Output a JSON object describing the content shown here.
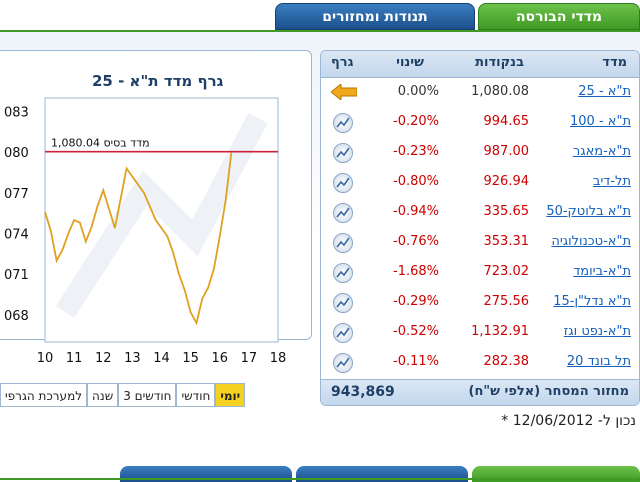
{
  "tabs": [
    {
      "label": "מדדי הבורסה",
      "active": true
    },
    {
      "label": "תנודות ומחזורים",
      "active": false
    }
  ],
  "table": {
    "headers": {
      "index": "מדד",
      "points": "בנקודות",
      "change": "שינוי",
      "graph": "גרף"
    },
    "rows": [
      {
        "name": "ת\"א - 25",
        "points": "1,080.08",
        "change": "0.00%",
        "selected": true
      },
      {
        "name": "ת\"א - 100",
        "points": "994.65",
        "change": "-0.20%"
      },
      {
        "name": "ת\"א-מאגר",
        "points": "987.00",
        "change": "-0.23%"
      },
      {
        "name": "תל-דיב",
        "points": "926.94",
        "change": "-0.80%"
      },
      {
        "name": "ת\"א בלוטק-50",
        "points": "335.65",
        "change": "-0.94%"
      },
      {
        "name": "ת\"א-טכנולוגיה",
        "points": "353.31",
        "change": "-0.76%"
      },
      {
        "name": "ת\"א-ביומד",
        "points": "723.02",
        "change": "-1.68%"
      },
      {
        "name": "ת\"א נדל\"ן-15",
        "points": "275.56",
        "change": "-0.29%"
      },
      {
        "name": "ת\"א-נפט וגז",
        "points": "1,132.91",
        "change": "-0.52%"
      },
      {
        "name": "תל בונד 20",
        "points": "282.38",
        "change": "-0.11%"
      }
    ],
    "footer": {
      "label": "מחזור המסחר (אלפי ש\"ח)",
      "value": "943,869"
    }
  },
  "chart": {
    "title": "גרף מדד ת\"א - 25",
    "base_label": "מדד בסיס 1,080.04",
    "periods": [
      "יומי",
      "חודשי",
      "3 חודשים",
      "שנה",
      "למערכת הגרפי"
    ],
    "active_period": "יומי"
  },
  "chart_data": {
    "type": "line",
    "title": "גרף מדד ת\"א - 25",
    "x_ticks": [
      "10",
      "11",
      "12",
      "13",
      "14",
      "15",
      "16",
      "17",
      "18"
    ],
    "y_ticks": [
      "083",
      "080",
      "077",
      "074",
      "071",
      "068"
    ],
    "xlim": [
      10,
      18
    ],
    "ylim": [
      1066,
      1084
    ],
    "reference_line": {
      "label": "מדד בסיס 1,080.04",
      "value": 1080.04
    },
    "series": [
      {
        "x": [
          10.0,
          10.2,
          10.4,
          10.6,
          10.8,
          11.0,
          11.2,
          11.4,
          11.6,
          11.8,
          12.0,
          12.2,
          12.4,
          12.6,
          12.8,
          13.0,
          13.2,
          13.4,
          13.6,
          13.8,
          14.0,
          14.2,
          14.4,
          14.6,
          14.8,
          15.0,
          15.2,
          15.4,
          15.6,
          15.8,
          16.0,
          16.2,
          16.4
        ],
        "y": [
          1075.6,
          1074.2,
          1072.0,
          1072.8,
          1074.0,
          1075.0,
          1074.8,
          1073.4,
          1074.5,
          1076.0,
          1077.2,
          1075.8,
          1074.4,
          1076.6,
          1078.8,
          1078.2,
          1077.6,
          1077.0,
          1076.0,
          1075.0,
          1074.4,
          1073.8,
          1072.6,
          1071.0,
          1069.8,
          1068.2,
          1067.4,
          1069.2,
          1070.0,
          1071.4,
          1073.8,
          1076.4,
          1080.0
        ]
      }
    ]
  },
  "date": {
    "text": "* נכון ל- 12/06/2012"
  },
  "colors": {
    "green_tab": "#3f9a25",
    "blue_tab": "#1c4f8c",
    "series": "#e0a020",
    "reference": "#cc1f3a"
  }
}
